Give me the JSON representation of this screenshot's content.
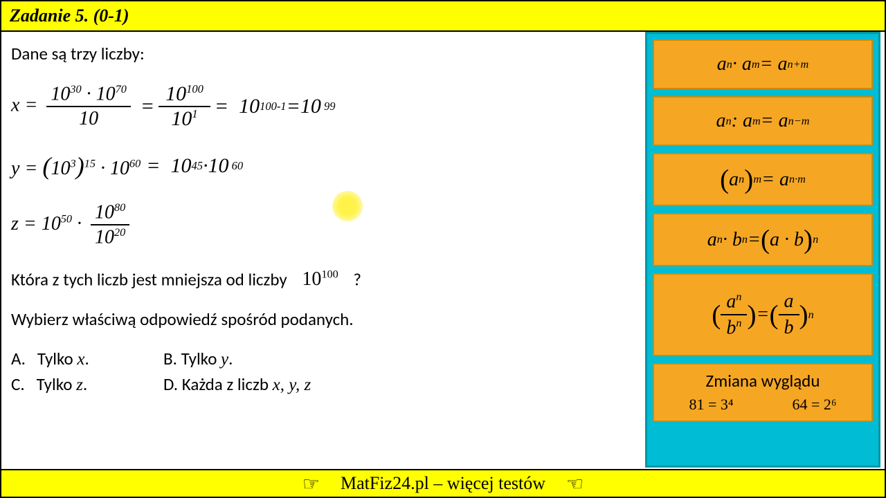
{
  "header": {
    "title": "Zadanie 5. (0-1)"
  },
  "content": {
    "intro": "Dane są trzy liczby:",
    "eq_x": {
      "lhs_var": "x",
      "num1_base": "10",
      "num1_exp": "30",
      "num2_base": "10",
      "num2_exp": "70",
      "den": "10",
      "hand_step1_num_base": "10",
      "hand_step1_num_exp": "100",
      "hand_step1_den_base": "10",
      "hand_step1_den_exp": "1",
      "hand_step2_base": "10",
      "hand_step2_exp": "100-1",
      "hand_step3_base": "10",
      "hand_step3_exp": "99"
    },
    "eq_y": {
      "lhs_var": "y",
      "inner_base": "10",
      "inner_exp": "3",
      "outer_exp": "15",
      "mult_base": "10",
      "mult_exp": "60",
      "hand1_base": "10",
      "hand1_exp": "45",
      "hand2_base": "10",
      "hand2_exp": "60"
    },
    "eq_z": {
      "lhs_var": "z",
      "first_base": "10",
      "first_exp": "50",
      "frac_num_base": "10",
      "frac_num_exp": "80",
      "frac_den_base": "10",
      "frac_den_exp": "20"
    },
    "question_pre": "Która z tych liczb jest mniejsza od liczby",
    "question_base": "10",
    "question_exp": "100",
    "question_post": "?",
    "instruction": "Wybierz właściwą odpowiedź spośród podanych.",
    "answers": {
      "A_label": "A.",
      "A_text_pre": "Tylko ",
      "A_var": "x",
      "A_text_post": ".",
      "B_label": "B.",
      "B_text_pre": "Tylko ",
      "B_var": "y",
      "B_text_post": ".",
      "C_label": "C.",
      "C_text_pre": "Tylko ",
      "C_var": "z",
      "C_text_post": ".",
      "D_label": "D.",
      "D_text_pre": "Każda z liczb ",
      "D_vars": "x, y, z"
    }
  },
  "sidebar": {
    "formulas": [
      {
        "html": "a<sup>n</sup> · a<sup>m</sup> = a<sup>n+m</sup>"
      },
      {
        "html": "a<sup>n</sup> : a<sup>m</sup> = a<sup>n−m</sup>"
      },
      {
        "html": "<span class='lparen'>(</span>a<sup>n</sup><span class='rparen'>)</span><sup>m</sup> = a<sup>n·m</sup>"
      },
      {
        "html": "a<sup>n</sup> · b<sup>n</sup> = <span class='lparen'>(</span>a · b<span class='rparen'>)</span><sup>n</sup>"
      },
      {
        "html": "<span class='lparen'>(</span><span class='bigfrac'><span class='n'>a<sup>n</sup></span><span class='d'>b<sup>n</sup></span></span><span class='rparen'>)</span> = <span class='lparen'>(</span><span class='bigfrac'><span class='n'>a</span><span class='d'>b</span></span><span class='rparen'>)</span><sup>n</sup>",
        "tall": true
      }
    ],
    "change_title": "Zmiana wyglądu",
    "change_ex1": "81 = 3⁴",
    "change_ex2": "64 = 2⁶"
  },
  "footer": {
    "text": "MatFiz24.pl – więcej testów",
    "pointer_right": "☞",
    "pointer_left": "☜"
  },
  "colors": {
    "yellow": "#ffff00",
    "orange": "#f5a623",
    "cyan": "#00bcd4",
    "highlight": "#fff34a"
  }
}
